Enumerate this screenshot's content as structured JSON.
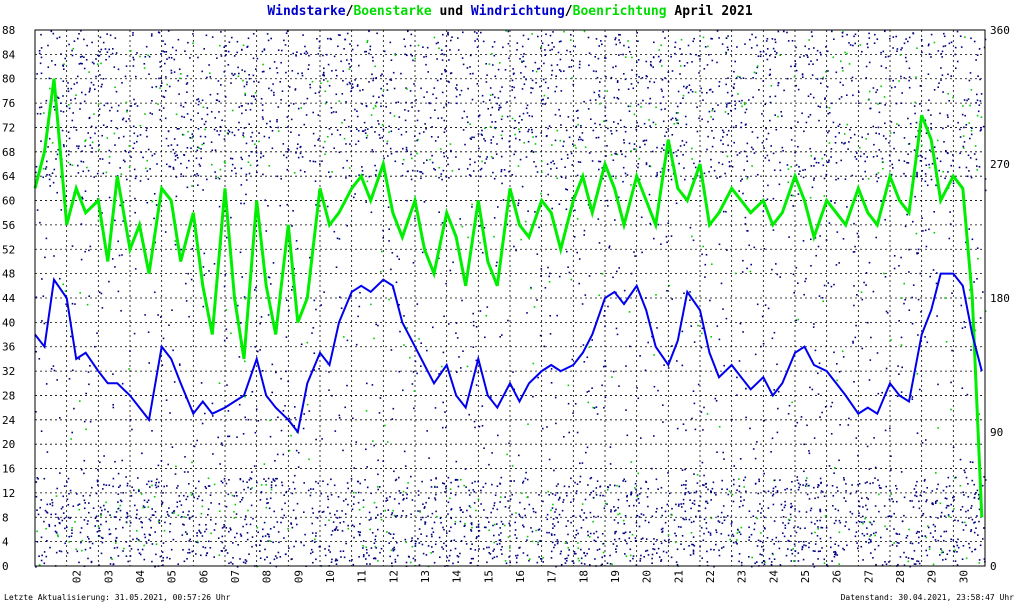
{
  "title_parts": [
    {
      "text": "Windstarke",
      "color": "#0000cc"
    },
    {
      "text": "/",
      "color": "#000000"
    },
    {
      "text": "Boenstarke",
      "color": "#00dd00"
    },
    {
      "text": " und ",
      "color": "#000000"
    },
    {
      "text": "Windrichtung",
      "color": "#0000cc"
    },
    {
      "text": "/",
      "color": "#000000"
    },
    {
      "text": "Boenrichtung",
      "color": "#00dd00"
    },
    {
      "text": " April 2021",
      "color": "#000000"
    }
  ],
  "footer": {
    "left": "Letzte Aktualisierung: 31.05.2021, 00:57:26 Uhr",
    "right": "Datenstand: 30.04.2021, 23:58:47 Uhr"
  },
  "colors": {
    "wind": "#0000ee",
    "gust": "#00ee00",
    "dir_dots": "#000080",
    "gust_dir_dots": "#00cc00"
  },
  "chart_data": {
    "type": "line",
    "x_tick_labels": [
      "02",
      "03",
      "04",
      "05",
      "06",
      "07",
      "08",
      "09",
      "10",
      "11",
      "12",
      "13",
      "14",
      "15",
      "16",
      "17",
      "18",
      "19",
      "20",
      "21",
      "22",
      "23",
      "24",
      "25",
      "26",
      "27",
      "28",
      "29",
      "30"
    ],
    "x_range_days": [
      1,
      31
    ],
    "y_left": {
      "range": [
        0,
        88
      ],
      "ticks": [
        0,
        4,
        8,
        12,
        16,
        20,
        24,
        28,
        32,
        36,
        40,
        44,
        48,
        52,
        56,
        60,
        64,
        68,
        72,
        76,
        80,
        84,
        88
      ]
    },
    "y_right": {
      "range": [
        0,
        360
      ],
      "ticks": [
        0,
        90,
        180,
        270,
        360
      ]
    },
    "grid": true,
    "series": [
      {
        "name": "Windstarke",
        "axis": "left",
        "x": [
          1.0,
          1.3,
          1.6,
          2.0,
          2.3,
          2.6,
          3.0,
          3.3,
          3.6,
          4.0,
          4.3,
          4.6,
          5.0,
          5.3,
          5.6,
          6.0,
          6.3,
          6.6,
          7.0,
          7.3,
          7.6,
          8.0,
          8.3,
          8.6,
          9.0,
          9.3,
          9.6,
          10.0,
          10.3,
          10.6,
          11.0,
          11.3,
          11.6,
          12.0,
          12.3,
          12.6,
          13.0,
          13.3,
          13.6,
          14.0,
          14.3,
          14.6,
          15.0,
          15.3,
          15.6,
          16.0,
          16.3,
          16.6,
          17.0,
          17.3,
          17.6,
          18.0,
          18.3,
          18.6,
          19.0,
          19.3,
          19.6,
          20.0,
          20.3,
          20.6,
          21.0,
          21.3,
          21.6,
          22.0,
          22.3,
          22.6,
          23.0,
          23.3,
          23.6,
          24.0,
          24.3,
          24.6,
          25.0,
          25.3,
          25.6,
          26.0,
          26.3,
          26.6,
          27.0,
          27.3,
          27.6,
          28.0,
          28.3,
          28.6,
          29.0,
          29.3,
          29.6,
          30.0,
          30.3,
          30.6,
          30.9
        ],
        "values": [
          38,
          36,
          47,
          44,
          34,
          35,
          32,
          30,
          30,
          28,
          26,
          24,
          36,
          34,
          30,
          25,
          27,
          25,
          26,
          27,
          28,
          34,
          28,
          26,
          24,
          22,
          30,
          35,
          33,
          40,
          45,
          46,
          45,
          47,
          46,
          40,
          36,
          33,
          30,
          33,
          28,
          26,
          34,
          28,
          26,
          30,
          27,
          30,
          32,
          33,
          32,
          33,
          35,
          38,
          44,
          45,
          43,
          46,
          42,
          36,
          33,
          37,
          45,
          42,
          35,
          31,
          33,
          31,
          29,
          31,
          28,
          30,
          35,
          36,
          33,
          32,
          30,
          28,
          25,
          26,
          25,
          30,
          28,
          27,
          38,
          42,
          48,
          48,
          46,
          38,
          32
        ]
      },
      {
        "name": "Boenstarke",
        "axis": "left",
        "x": [
          1.0,
          1.3,
          1.6,
          2.0,
          2.3,
          2.6,
          3.0,
          3.3,
          3.6,
          4.0,
          4.3,
          4.6,
          5.0,
          5.3,
          5.6,
          6.0,
          6.3,
          6.6,
          7.0,
          7.3,
          7.6,
          8.0,
          8.3,
          8.6,
          9.0,
          9.3,
          9.6,
          10.0,
          10.3,
          10.6,
          11.0,
          11.3,
          11.6,
          12.0,
          12.3,
          12.6,
          13.0,
          13.3,
          13.6,
          14.0,
          14.3,
          14.6,
          15.0,
          15.3,
          15.6,
          16.0,
          16.3,
          16.6,
          17.0,
          17.3,
          17.6,
          18.0,
          18.3,
          18.6,
          19.0,
          19.3,
          19.6,
          20.0,
          20.3,
          20.6,
          21.0,
          21.3,
          21.6,
          22.0,
          22.3,
          22.6,
          23.0,
          23.3,
          23.6,
          24.0,
          24.3,
          24.6,
          25.0,
          25.3,
          25.6,
          26.0,
          26.3,
          26.6,
          27.0,
          27.3,
          27.6,
          28.0,
          28.3,
          28.6,
          29.0,
          29.3,
          29.6,
          30.0,
          30.3,
          30.6,
          30.9
        ],
        "values": [
          62,
          68,
          80,
          56,
          62,
          58,
          60,
          50,
          64,
          52,
          56,
          48,
          62,
          60,
          50,
          58,
          46,
          38,
          62,
          44,
          34,
          60,
          46,
          38,
          56,
          40,
          44,
          62,
          56,
          58,
          62,
          64,
          60,
          66,
          58,
          54,
          60,
          52,
          48,
          58,
          54,
          46,
          60,
          50,
          46,
          62,
          56,
          54,
          60,
          58,
          52,
          60,
          64,
          58,
          66,
          62,
          56,
          64,
          60,
          56,
          70,
          62,
          60,
          66,
          56,
          58,
          62,
          60,
          58,
          60,
          56,
          58,
          64,
          60,
          54,
          60,
          58,
          56,
          62,
          58,
          56,
          64,
          60,
          58,
          74,
          70,
          60,
          64,
          62,
          44,
          8
        ]
      }
    ],
    "dot_series": [
      {
        "name": "Windrichtung",
        "axis": "right"
      },
      {
        "name": "Boenrichtung",
        "axis": "right"
      }
    ]
  }
}
